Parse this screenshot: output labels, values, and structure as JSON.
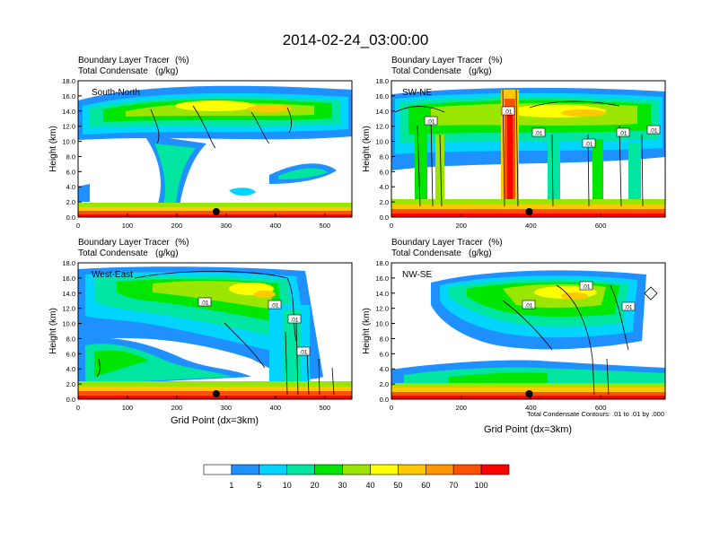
{
  "title": "2014-02-24_03:00:00",
  "chart_data": [
    {
      "type": "heatmap",
      "panel": "South-North",
      "title_left_line1": "Boundary Layer Tracer",
      "title_right_line1": "(%)",
      "title_left_line2": "Total Condensate",
      "title_right_line2": "(g/kg)",
      "ylabel": "Height (km)",
      "xlabel": "",
      "xticks": [
        "0",
        "100",
        "200",
        "300",
        "400",
        "500"
      ],
      "xlim": [
        0,
        555
      ],
      "ylim": [
        0,
        18
      ],
      "yticks": [
        "0.0",
        "2.0",
        "4.0",
        "6.0",
        "8.0",
        "10.0",
        "12.0",
        "14.0",
        "16.0",
        "18.0"
      ],
      "marker_x": 280,
      "contour_labels": []
    },
    {
      "type": "heatmap",
      "panel": "SW-NE",
      "title_left_line1": "Boundary Layer Tracer",
      "title_right_line1": "(%)",
      "title_left_line2": "Total Condensate",
      "title_right_line2": "(g/kg)",
      "ylabel": "Height (km)",
      "xlabel": "",
      "xticks": [
        "0",
        "200",
        "400",
        "600"
      ],
      "xlim": [
        0,
        785
      ],
      "ylim": [
        0,
        18
      ],
      "yticks": [
        "0.0",
        "2.0",
        "4.0",
        "6.0",
        "8.0",
        "10.0",
        "12.0",
        "14.0",
        "16.0",
        "18.0"
      ],
      "marker_x": 395,
      "contour_labels": [
        ".01",
        ".01",
        ".01",
        ".01",
        ".01",
        ".01"
      ]
    },
    {
      "type": "heatmap",
      "panel": "West-East",
      "title_left_line1": "Boundary Layer Tracer",
      "title_right_line1": "(%)",
      "title_left_line2": "Total Condensate",
      "title_right_line2": "(g/kg)",
      "ylabel": "Height (km)",
      "xlabel": "Grid Point (dx=3km)",
      "xticks": [
        "0",
        "100",
        "200",
        "300",
        "400",
        "500"
      ],
      "xlim": [
        0,
        555
      ],
      "ylim": [
        0,
        18
      ],
      "yticks": [
        "0.0",
        "2.0",
        "4.0",
        "6.0",
        "8.0",
        "10.0",
        "12.0",
        "14.0",
        "16.0",
        "18.0"
      ],
      "marker_x": 280,
      "contour_labels": [
        ".01",
        ".01",
        ".01",
        ".01"
      ]
    },
    {
      "type": "heatmap",
      "panel": "NW-SE",
      "title_left_line1": "Boundary Layer Tracer",
      "title_right_line1": "(%)",
      "title_left_line2": "Total Condensate",
      "title_right_line2": "(g/kg)",
      "ylabel": "Height (km)",
      "xlabel": "Grid Point (dx=3km)",
      "xticks": [
        "0",
        "200",
        "400",
        "600"
      ],
      "xlim": [
        0,
        785
      ],
      "ylim": [
        0,
        18
      ],
      "yticks": [
        "0.0",
        "2.0",
        "4.0",
        "6.0",
        "8.0",
        "10.0",
        "12.0",
        "14.0",
        "16.0",
        "18.0"
      ],
      "marker_x": 395,
      "contour_labels": [
        ".01",
        ".01",
        ".01"
      ]
    }
  ],
  "contour_note": "Total Condensate Contours: .01 to .01 by .000",
  "colorbar": {
    "labels": [
      "1",
      "5",
      "10",
      "20",
      "30",
      "40",
      "50",
      "60",
      "70",
      "100"
    ],
    "colors": [
      "#ffffff",
      "#1e90ff",
      "#00d4ff",
      "#00e5a0",
      "#00e600",
      "#9be600",
      "#ffff00",
      "#ffc800",
      "#ff9600",
      "#ff5000",
      "#ff0000"
    ]
  }
}
